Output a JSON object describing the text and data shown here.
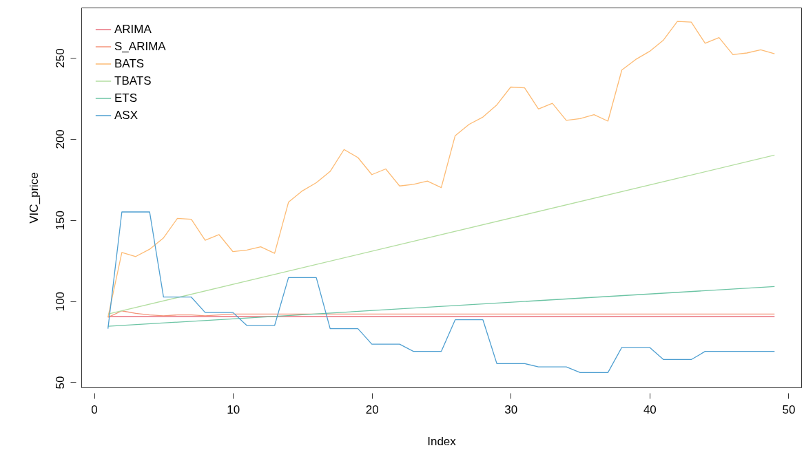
{
  "chart_data": {
    "type": "line",
    "xlabel": "Index",
    "ylabel": "VIC_price",
    "xlim": [
      -0.92,
      50.92
    ],
    "ylim": [
      46.8,
      281
    ],
    "xticks": [
      0,
      10,
      20,
      30,
      40,
      50
    ],
    "yticks": [
      50,
      100,
      150,
      200,
      250
    ],
    "grid": false,
    "legend": "top left",
    "marker": "none",
    "line_style": "solid",
    "series": [
      {
        "name": "ARIMA",
        "color": "#e8707e",
        "x": [
          1,
          49
        ],
        "values": [
          90.5,
          90.5
        ]
      },
      {
        "name": "S_ARIMA",
        "color": "#f4957a",
        "x": [
          1,
          2,
          3,
          4,
          5,
          6,
          7,
          8,
          9,
          10,
          49
        ],
        "values": [
          90,
          94,
          92.5,
          91.5,
          91,
          91.5,
          91.5,
          91,
          91.5,
          92,
          92
        ]
      },
      {
        "name": "BATS",
        "color": "#fdbb74",
        "x": [
          1,
          2,
          3,
          4,
          5,
          6,
          7,
          8,
          9,
          10,
          11,
          12,
          13,
          14,
          15,
          16,
          17,
          18,
          19,
          20,
          21,
          22,
          23,
          24,
          25,
          26,
          27,
          28,
          29,
          30,
          31,
          32,
          33,
          34,
          35,
          36,
          37,
          38,
          39,
          40,
          41,
          42,
          43,
          44,
          45,
          46,
          47,
          48,
          49
        ],
        "values": [
          90,
          130,
          127.5,
          132,
          139,
          151,
          150.5,
          137.5,
          141,
          130.5,
          131.5,
          133.5,
          129.5,
          161,
          168,
          173,
          180,
          193.5,
          188.5,
          178,
          181.5,
          171,
          172,
          174,
          170,
          202,
          209,
          213.5,
          221,
          232,
          231.5,
          218.5,
          222,
          211.5,
          212.5,
          215,
          211,
          242.5,
          249,
          254,
          261,
          272.5,
          272,
          259,
          262.5,
          252,
          253,
          255,
          252.5
        ]
      },
      {
        "name": "TBATS",
        "color": "#b3dea0",
        "x": [
          1,
          49
        ],
        "values": [
          92,
          190
        ]
      },
      {
        "name": "ETS",
        "color": "#6cc4a4",
        "x": [
          1,
          49
        ],
        "values": [
          84.5,
          109
        ]
      },
      {
        "name": "ASX",
        "color": "#4e9fd1",
        "x": [
          1,
          2,
          3,
          4,
          5,
          6,
          7,
          8,
          9,
          10,
          11,
          12,
          13,
          14,
          15,
          16,
          17,
          18,
          19,
          20,
          21,
          22,
          23,
          24,
          25,
          26,
          27,
          28,
          29,
          30,
          31,
          32,
          33,
          34,
          35,
          36,
          37,
          38,
          39,
          40,
          41,
          42,
          43,
          44,
          45,
          46,
          47,
          48,
          49
        ],
        "values": [
          83,
          155,
          155,
          155,
          102.5,
          102.5,
          102.5,
          93,
          93,
          93,
          85,
          85,
          85,
          114.5,
          114.5,
          114.5,
          83,
          83,
          83,
          73.5,
          73.5,
          73.5,
          69,
          69,
          69,
          88.5,
          88.5,
          88.5,
          61.5,
          61.5,
          61.5,
          59.5,
          59.5,
          59.5,
          56,
          56,
          56,
          71.5,
          71.5,
          71.5,
          64,
          64,
          64,
          69,
          69,
          69,
          69,
          69,
          69
        ]
      }
    ]
  }
}
